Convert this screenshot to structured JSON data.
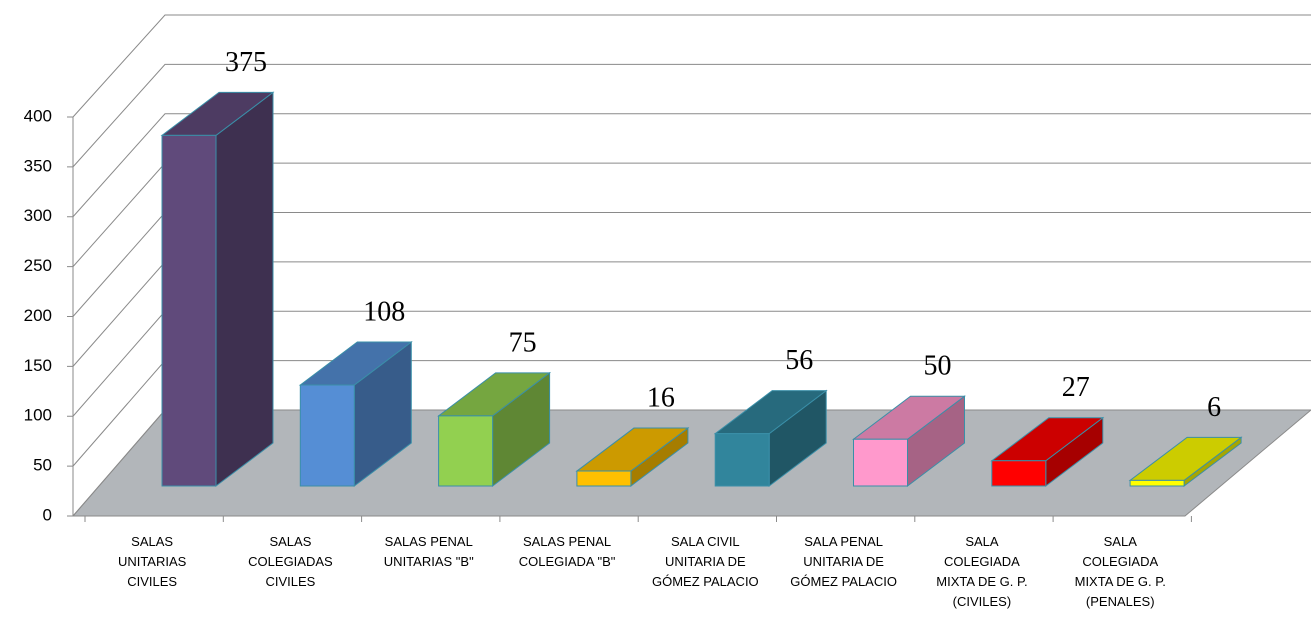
{
  "chart_data": {
    "type": "bar3d",
    "categories": [
      "SALAS UNITARIAS CIVILES",
      "SALAS COLEGIADAS CIVILES",
      "SALAS PENAL UNITARIAS \"B\"",
      "SALAS PENAL COLEGIADA \"B\"",
      "SALA CIVIL UNITARIA DE GÓMEZ PALACIO",
      "SALA PENAL UNITARIA DE GÓMEZ PALACIO",
      "SALA COLEGIADA MIXTA DE G. P. (CIVILES)",
      "SALA COLEGIADA MIXTA DE G. P.(PENALES)"
    ],
    "values": [
      375,
      108,
      75,
      16,
      56,
      50,
      27,
      6
    ],
    "colors": [
      "#604a7b",
      "#558ed5",
      "#92d050",
      "#ffc000",
      "#31859c",
      "#ff99cc",
      "#ff0000",
      "#ffff00"
    ],
    "ylim": [
      0,
      400
    ],
    "yticks": [
      0,
      50,
      100,
      150,
      200,
      250,
      300,
      350,
      400
    ],
    "grid": true
  }
}
